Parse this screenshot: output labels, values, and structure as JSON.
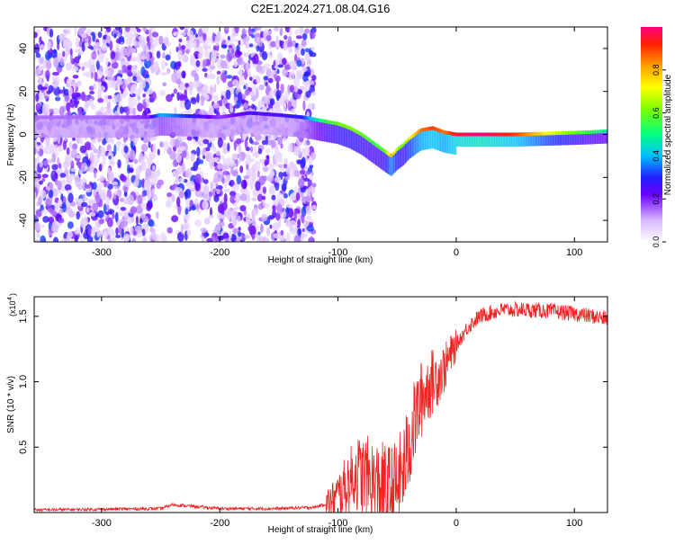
{
  "chart_data": [
    {
      "type": "heatmap",
      "title": "C2E1.2024.271.08.04.G16",
      "xlabel": "Height of straight line (km)",
      "ylabel": "Frequency (Hz)",
      "xlim": [
        -357,
        128
      ],
      "ylim": [
        -50,
        50
      ],
      "x_ticks": [
        -300,
        -200,
        -100,
        0,
        100
      ],
      "x_tick_labels": [
        "-300",
        "-200",
        "-100",
        "0",
        "100"
      ],
      "y_ticks": [
        -40,
        -20,
        0,
        20,
        40
      ],
      "y_tick_labels": [
        "-40",
        "-20",
        "0",
        "20",
        "40"
      ],
      "colorbar": {
        "label": "Normalized spectral amplitude",
        "range": [
          0,
          1
        ],
        "ticks": [
          0.0,
          0.2,
          0.4,
          0.6,
          0.8
        ],
        "tick_labels": [
          "0.0",
          "0.2",
          "0.4",
          "0.6",
          "0.8"
        ]
      },
      "ridge": {
        "x": [
          -355,
          -300,
          -260,
          -250,
          -200,
          -175,
          -150,
          -130,
          -120,
          -110,
          -100,
          -90,
          -80,
          -70,
          -60,
          -55,
          -50,
          -45,
          -40,
          -30,
          -20,
          -10,
          0,
          20,
          50,
          80,
          110,
          128
        ],
        "freq": [
          8,
          8,
          8,
          9,
          8,
          10,
          9,
          8,
          7,
          6,
          5,
          3,
          0,
          -4,
          -8,
          -10,
          -7,
          -5,
          -2,
          2,
          3,
          1,
          0,
          0,
          0,
          0.5,
          1,
          1.5
        ],
        "amplitude": [
          0.15,
          0.15,
          0.2,
          0.4,
          0.18,
          0.25,
          0.25,
          0.3,
          0.45,
          0.55,
          0.6,
          0.62,
          0.6,
          0.55,
          0.6,
          0.8,
          0.65,
          0.6,
          0.7,
          0.85,
          0.9,
          0.85,
          0.95,
          1.0,
          0.9,
          0.7,
          0.55,
          0.5
        ]
      }
    },
    {
      "type": "line",
      "xlabel": "Height of straight line (km)",
      "ylabel": "SNR (10 * v/v)",
      "y_multiplier": "(x10",
      "y_multiplier_exp": "4",
      "y_multiplier_close": ")",
      "xlim": [
        -357,
        128
      ],
      "ylim": [
        0,
        1.65
      ],
      "x_ticks": [
        -300,
        -200,
        -100,
        0,
        100
      ],
      "x_tick_labels": [
        "-300",
        "-200",
        "-100",
        "0",
        "100"
      ],
      "y_ticks": [
        0.5,
        1.0,
        1.5
      ],
      "y_tick_labels": [
        "0.5",
        "1.0",
        "1.5"
      ],
      "color": "#ee2222",
      "series": [
        {
          "x": [
            -357,
            -300,
            -250,
            -240,
            -200,
            -150,
            -120,
            -105,
            -95,
            -85,
            -78,
            -70,
            -62,
            -55,
            -50,
            -45,
            -40,
            -35,
            -30,
            -25,
            -20,
            -15,
            -10,
            -5,
            0,
            10,
            20,
            30,
            40,
            60,
            80,
            100,
            115,
            128
          ],
          "values": [
            0.02,
            0.025,
            0.03,
            0.06,
            0.03,
            0.03,
            0.04,
            0.08,
            0.18,
            0.3,
            0.28,
            0.22,
            0.18,
            0.16,
            0.2,
            0.32,
            0.5,
            0.7,
            0.85,
            0.95,
            1.0,
            1.05,
            1.1,
            1.2,
            1.28,
            1.42,
            1.5,
            1.53,
            1.55,
            1.55,
            1.54,
            1.52,
            1.5,
            1.48
          ]
        }
      ]
    }
  ]
}
